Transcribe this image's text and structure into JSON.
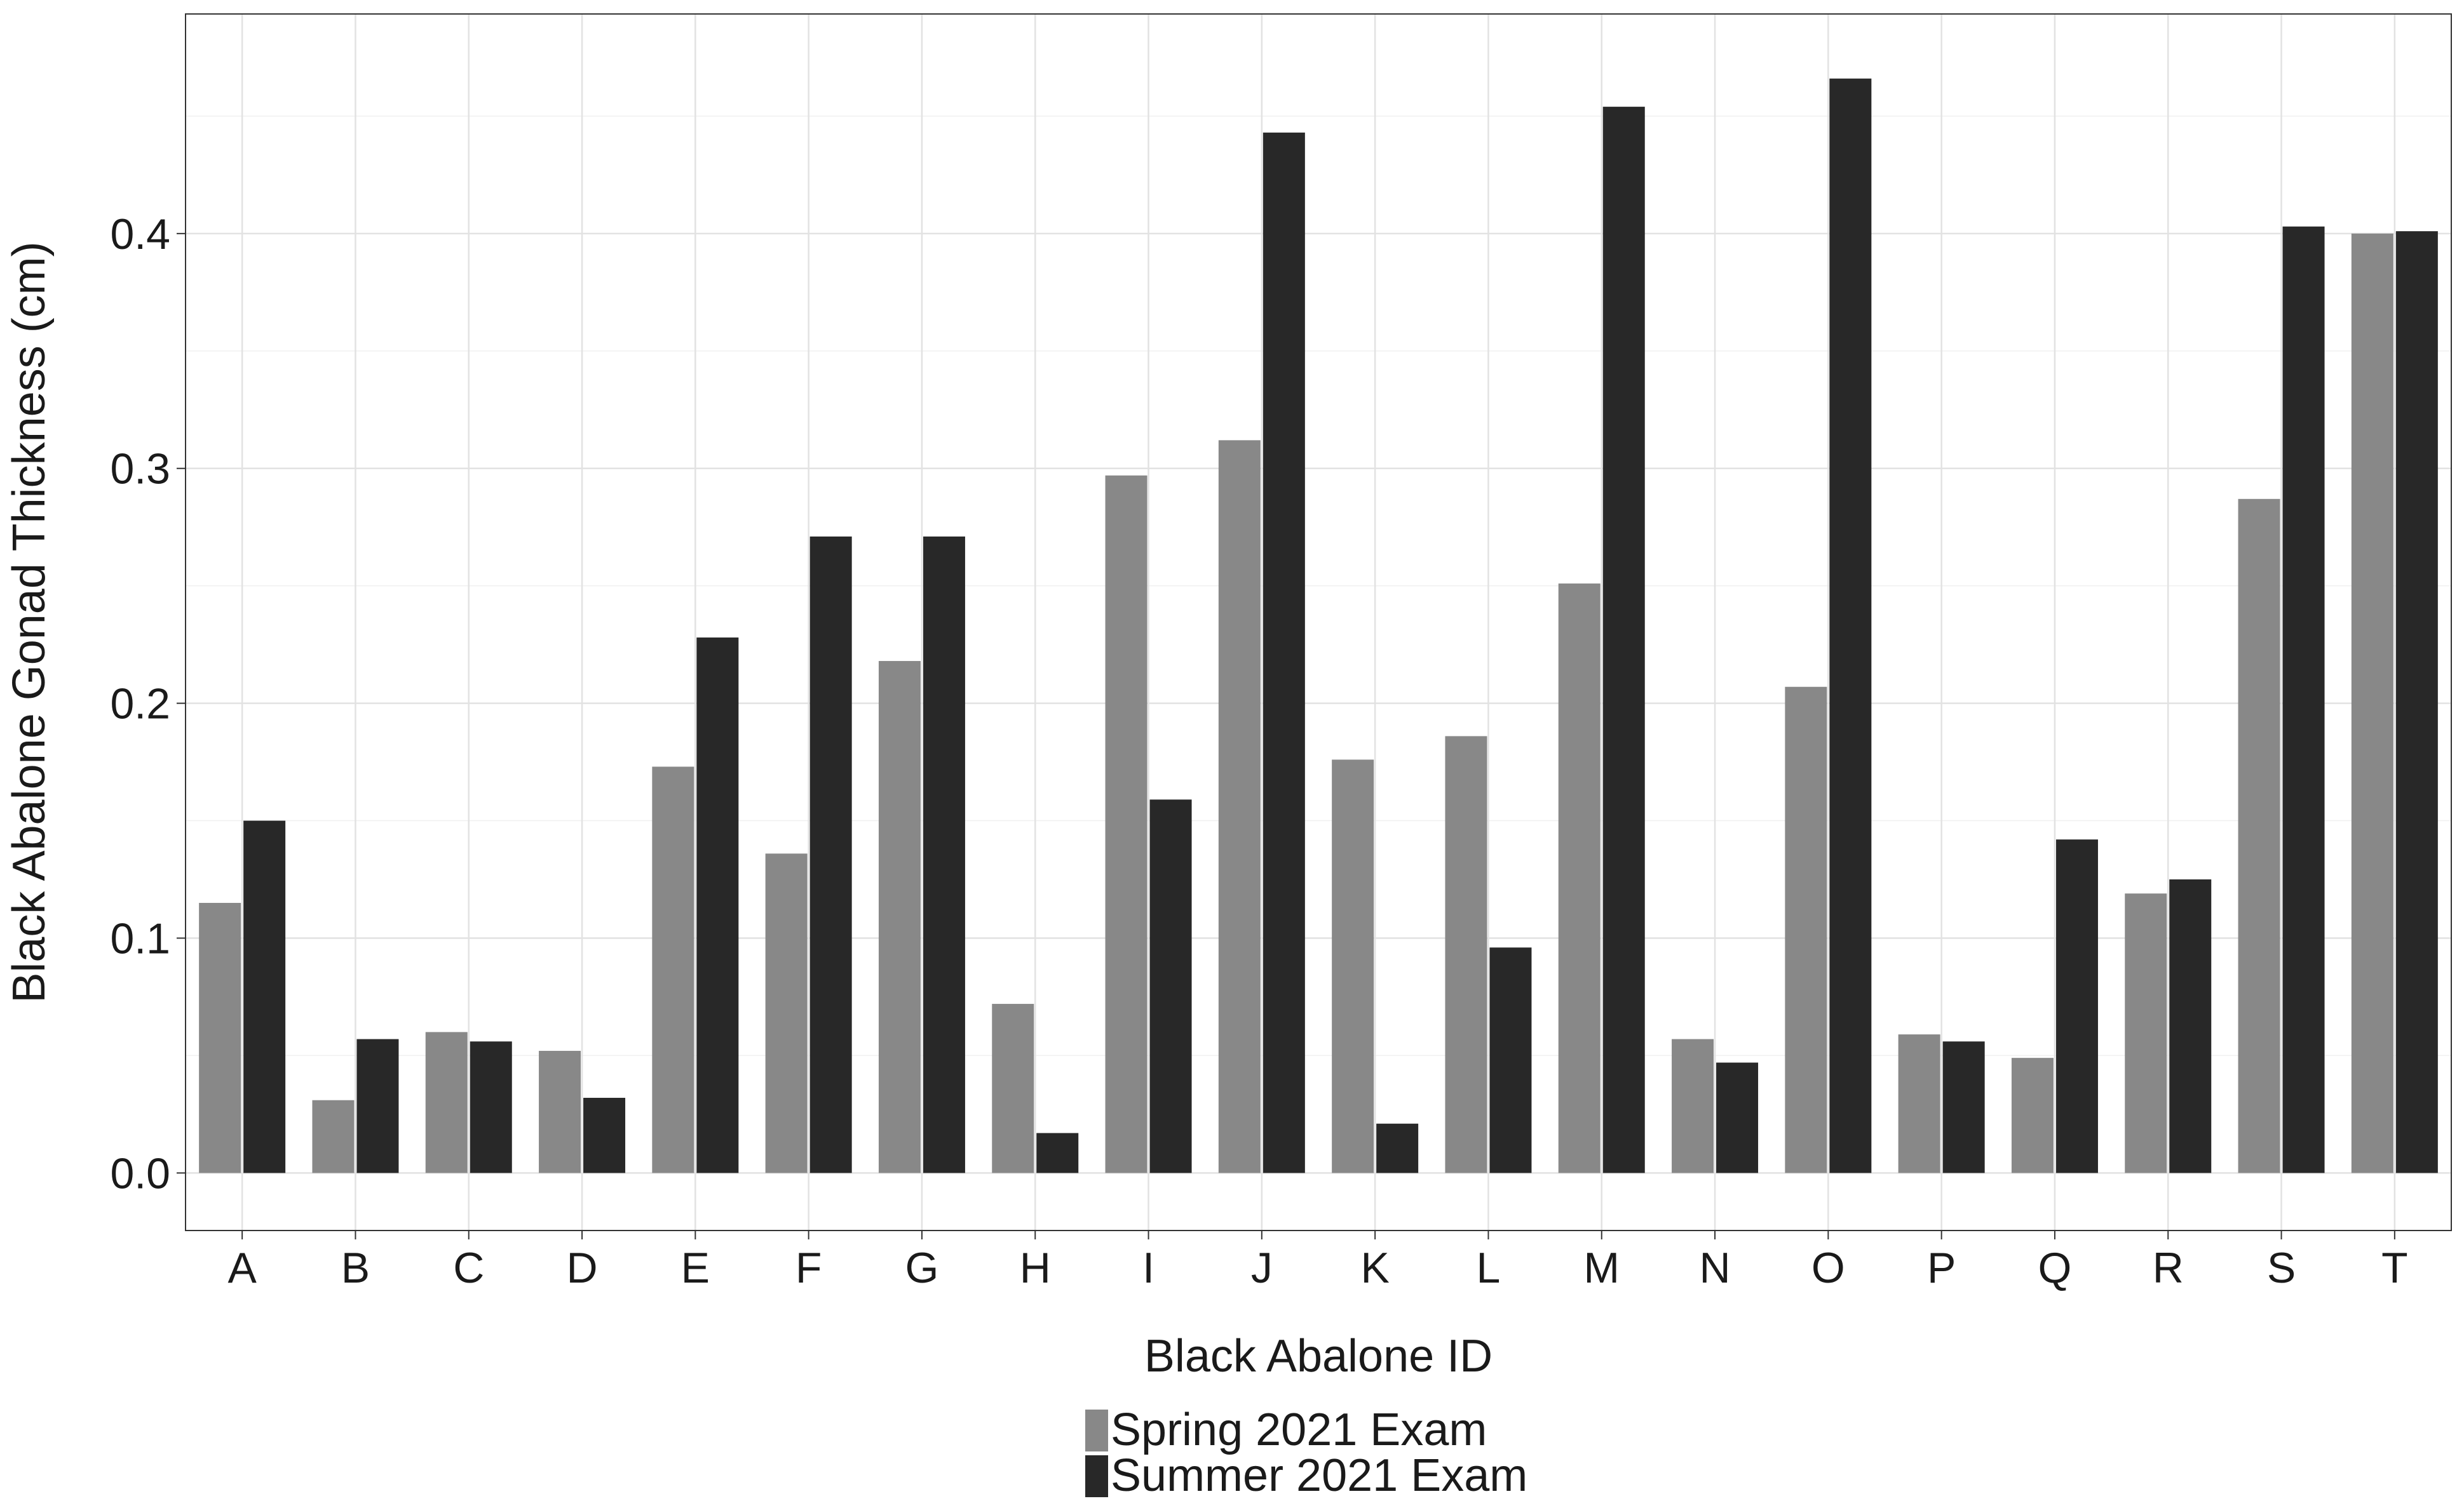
{
  "chart_data": {
    "type": "bar",
    "xlabel": "Black Abalone ID",
    "ylabel": "Black Abalone Gonad Thickness (cm)",
    "categories": [
      "A",
      "B",
      "C",
      "D",
      "E",
      "F",
      "G",
      "H",
      "I",
      "J",
      "K",
      "L",
      "M",
      "N",
      "O",
      "P",
      "Q",
      "R",
      "S",
      "T"
    ],
    "series": [
      {
        "name": "Spring 2021 Exam",
        "color": "#888888",
        "values": [
          0.115,
          0.031,
          0.06,
          0.052,
          0.173,
          0.136,
          0.218,
          0.072,
          0.297,
          0.312,
          0.176,
          0.186,
          0.251,
          0.057,
          0.207,
          0.059,
          0.049,
          0.119,
          0.287,
          0.4
        ]
      },
      {
        "name": "Summer 2021 Exam",
        "color": "#282828",
        "values": [
          0.15,
          0.057,
          0.056,
          0.032,
          0.228,
          0.271,
          0.271,
          0.017,
          0.159,
          0.443,
          0.021,
          0.096,
          0.454,
          0.047,
          0.466,
          0.056,
          0.142,
          0.125,
          0.403,
          0.401
        ]
      }
    ],
    "ylim": [
      -0.0245,
      0.4935
    ],
    "yticks": [
      0.0,
      0.1,
      0.2,
      0.3,
      0.4
    ],
    "ytick_labels": [
      "0.0",
      "0.1",
      "0.2",
      "0.3",
      "0.4"
    ],
    "grid": true,
    "legend_position": "bottom"
  }
}
